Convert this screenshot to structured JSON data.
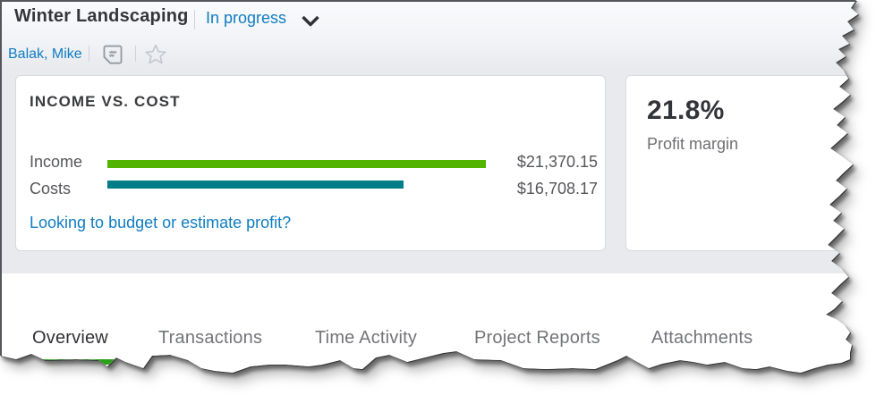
{
  "header": {
    "project_name": "Winter Landscaping",
    "status_label": "In progress",
    "customer_link": "Balak, Mike"
  },
  "cards": {
    "income_vs_cost": {
      "title": "INCOME VS. COST",
      "rows": [
        {
          "label": "Income",
          "value": "$21,370.15",
          "amount": 21370.15,
          "color": "#53b400"
        },
        {
          "label": "Costs",
          "value": "$16,708.17",
          "amount": 16708.17,
          "color": "#007d87"
        }
      ],
      "link": "Looking to budget or estimate profit?"
    },
    "profit_margin": {
      "value": "21.8%",
      "label": "Profit margin"
    }
  },
  "tabs": [
    {
      "label": "Overview",
      "active": true
    },
    {
      "label": "Transactions",
      "active": false
    },
    {
      "label": "Time Activity",
      "active": false
    },
    {
      "label": "Project Reports",
      "active": false
    },
    {
      "label": "Attachments",
      "active": false
    }
  ],
  "colors": {
    "accent_blue": "#0f7dc2",
    "active_tab_green": "#2ca01c",
    "income_green": "#53b400",
    "cost_teal": "#007d87"
  },
  "chart_data": {
    "type": "bar",
    "orientation": "horizontal",
    "title": "INCOME VS. COST",
    "categories": [
      "Income",
      "Costs"
    ],
    "values": [
      21370.15,
      16708.17
    ],
    "value_labels": [
      "$21,370.15",
      "$16,708.17"
    ],
    "colors": [
      "#53b400",
      "#007d87"
    ],
    "xlim": [
      0,
      21370.15
    ],
    "grid": false,
    "legend": false
  }
}
